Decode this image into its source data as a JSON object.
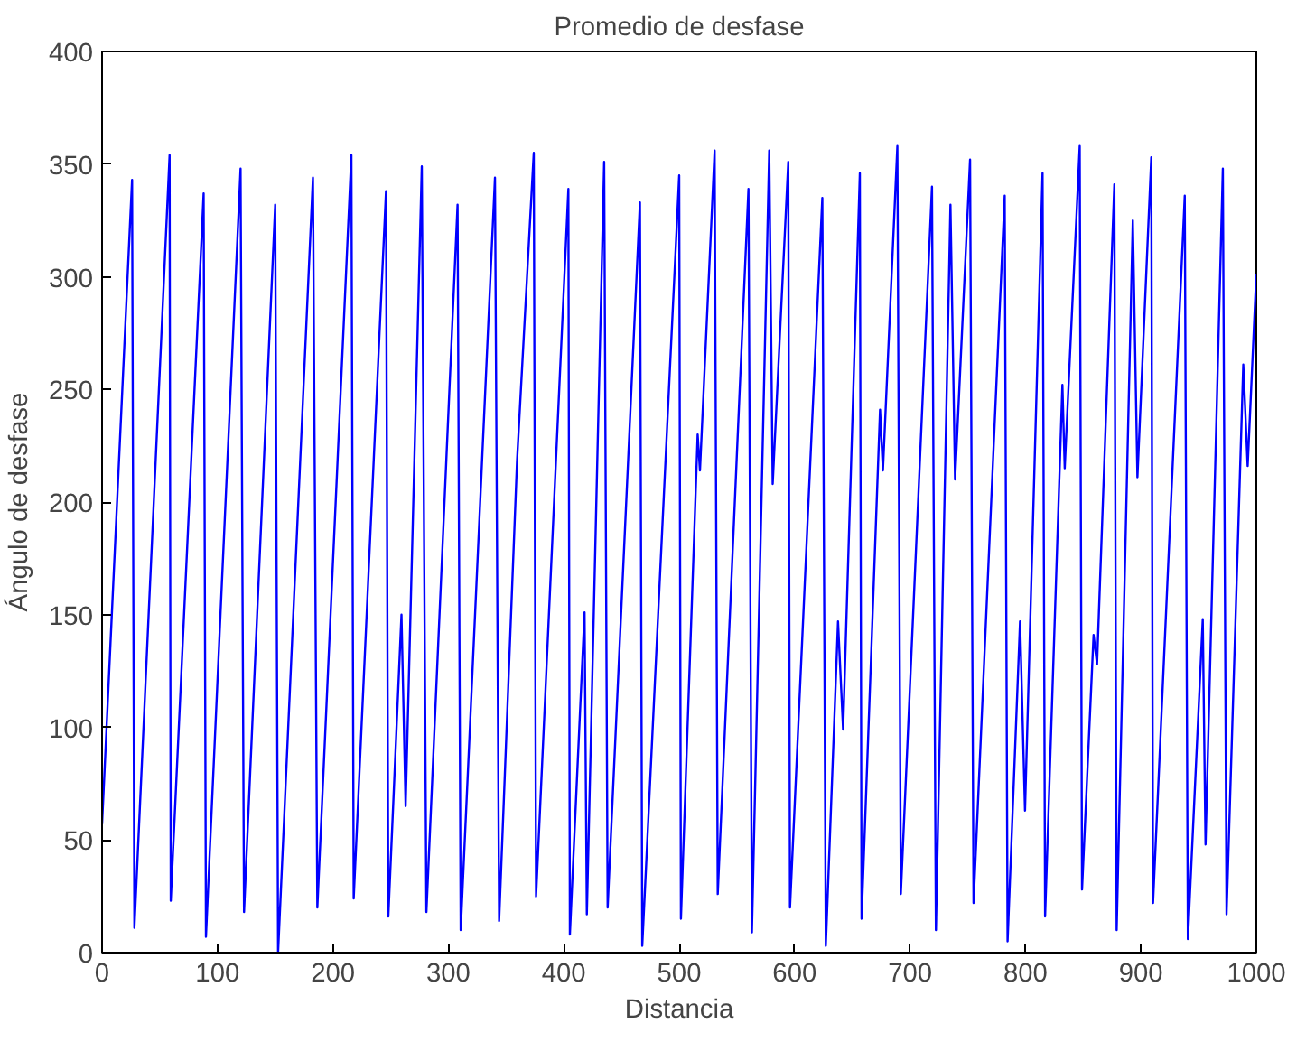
{
  "chart_data": {
    "type": "line",
    "title": "Promedio de desfase",
    "xlabel": "Distancia",
    "ylabel": "Ángulo de desfase",
    "xlim": [
      0,
      1000
    ],
    "ylim": [
      0,
      400
    ],
    "xticks": [
      0,
      100,
      200,
      300,
      400,
      500,
      600,
      700,
      800,
      900,
      1000
    ],
    "yticks": [
      0,
      50,
      100,
      150,
      200,
      250,
      300,
      350,
      400
    ],
    "grid": false,
    "marker": "none",
    "line_style": "solid",
    "series": [
      {
        "color": "#0000ff",
        "x": [
          0,
          26,
          28,
          58.5,
          59.5,
          88,
          90,
          120,
          123,
          150,
          152.5,
          182.7,
          186.5,
          216,
          218,
          246,
          248,
          259.4,
          263,
          277,
          281,
          308,
          310.7,
          340.4,
          344,
          359.5,
          374,
          376,
          404,
          405.3,
          418,
          420,
          435,
          438,
          466,
          468,
          500,
          501.5,
          516,
          518,
          530.7,
          533.4,
          560,
          563,
          578,
          581,
          594.5,
          596,
          624,
          627,
          637.6,
          642,
          656.5,
          658,
          674,
          676.5,
          689,
          692,
          719,
          722.4,
          735,
          739,
          752,
          755,
          782,
          784.5,
          795.3,
          799.6,
          814.8,
          817,
          832,
          834,
          847,
          849,
          859,
          862,
          877,
          879,
          893,
          897,
          909,
          910.5,
          938,
          940.7,
          953.6,
          956,
          971,
          974.2,
          988.7,
          992.5,
          1000
        ],
        "values": [
          57,
          343,
          11,
          354,
          23,
          337,
          7,
          348,
          18,
          332,
          0,
          344,
          20,
          354,
          24,
          338,
          16,
          150,
          65,
          349,
          18,
          332,
          10,
          344,
          14,
          218,
          355,
          25,
          339,
          8,
          151,
          17,
          351,
          20,
          333,
          3,
          345,
          15,
          230,
          214,
          356,
          26,
          339,
          9,
          356,
          208,
          351,
          20,
          335,
          3,
          147,
          99,
          346,
          15,
          241,
          214,
          358,
          26,
          340,
          10,
          332,
          210,
          352,
          22,
          336,
          5,
          147,
          63,
          346,
          16,
          252,
          215,
          358,
          28,
          141,
          128,
          341,
          10,
          325,
          211,
          353,
          22,
          336,
          6,
          148,
          48,
          348,
          17,
          261,
          216,
          301
        ]
      }
    ]
  }
}
